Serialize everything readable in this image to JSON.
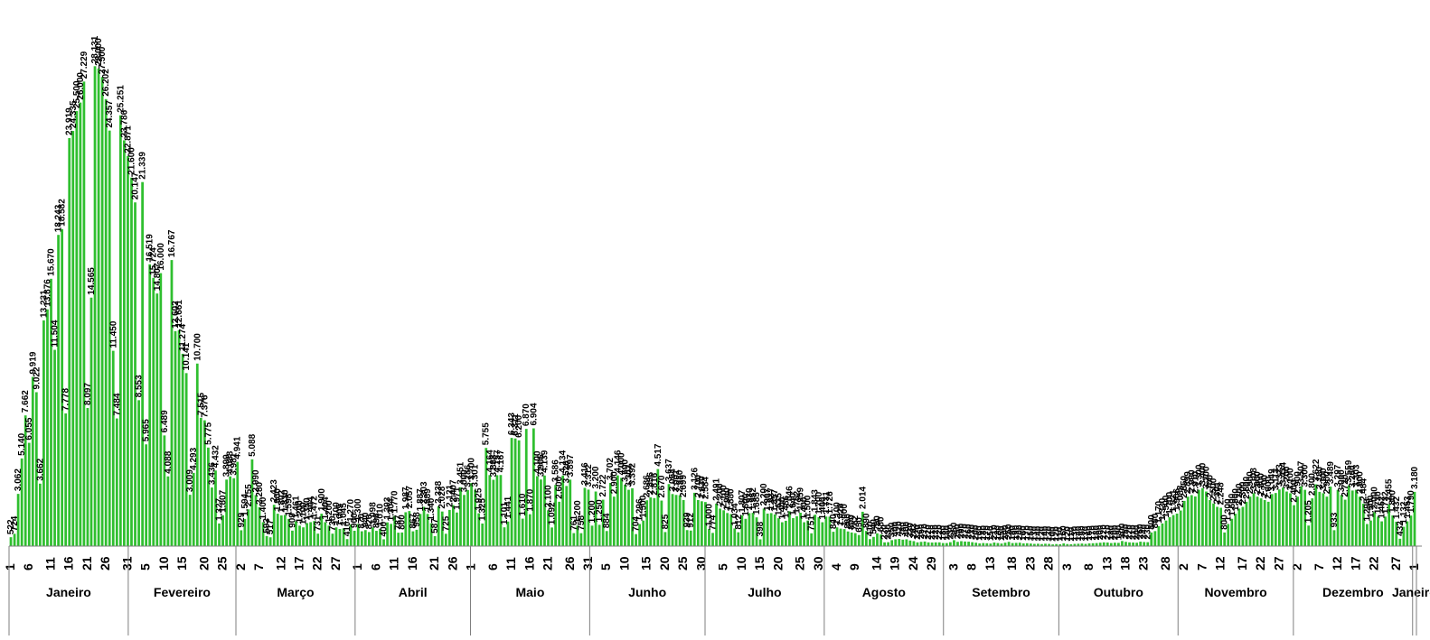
{
  "chart_data": {
    "type": "bar",
    "title": "",
    "xlabel": "",
    "ylabel": "",
    "ylim": [
      0,
      30000
    ],
    "grid": false,
    "legend": "none",
    "colors": {
      "bar": "#2fbf2f",
      "bar_edge": "#1a8f1a",
      "axis": "#7f7f7f",
      "text": "#000000"
    },
    "months": [
      {
        "label": "Janeiro",
        "days": 31
      },
      {
        "label": "Fevereiro",
        "days": 28
      },
      {
        "label": "Março",
        "days": 31
      },
      {
        "label": "Abril",
        "days": 30
      },
      {
        "label": "Maio",
        "days": 31
      },
      {
        "label": "Junho",
        "days": 30
      },
      {
        "label": "Julho",
        "days": 31
      },
      {
        "label": "Agosto",
        "days": 31
      },
      {
        "label": "Setembro",
        "days": 30
      },
      {
        "label": "Outubro",
        "days": 31
      },
      {
        "label": "Novembro",
        "days": 30
      },
      {
        "label": "Dezembro",
        "days": 31
      },
      {
        "label": "Janeiro",
        "days": 1
      }
    ],
    "tick_labels": [
      "1",
      "6",
      "11",
      "16",
      "21",
      "26",
      "31",
      "5",
      "10",
      "15",
      "20",
      "25",
      "2",
      "7",
      "12",
      "17",
      "22",
      "27",
      "1",
      "6",
      "11",
      "16",
      "21",
      "26",
      "1",
      "6",
      "11",
      "16",
      "21",
      "26",
      "31",
      "5",
      "10",
      "15",
      "20",
      "25",
      "30",
      "5",
      "10",
      "15",
      "20",
      "25",
      "30",
      "4",
      "9",
      "14",
      "19",
      "24",
      "29",
      "3",
      "8",
      "13",
      "18",
      "23",
      "28",
      "3",
      "8",
      "13",
      "18",
      "23",
      "28",
      "2",
      "7",
      "12",
      "17",
      "22",
      "27",
      "2",
      "7",
      "12",
      "17",
      "22",
      "27",
      "1"
    ],
    "values": [
      522,
      724,
      3062,
      5140,
      7662,
      6055,
      9919,
      9022,
      3662,
      13231,
      13876,
      15670,
      11504,
      18243,
      18582,
      7778,
      23919,
      24335,
      25500,
      26000,
      27229,
      8097,
      14565,
      28131,
      28000,
      27500,
      26202,
      24357,
      11450,
      7484,
      25251,
      23786,
      22871,
      21600,
      20147,
      8553,
      21339,
      5965,
      16519,
      15724,
      14807,
      16000,
      6489,
      4088,
      16767,
      12602,
      12661,
      11274,
      10141,
      3009,
      4293,
      10700,
      7515,
      7376,
      5775,
      3436,
      4432,
      1327,
      1807,
      3899,
      4088,
      3981,
      4941,
      929,
      1594,
      2155,
      5088,
      2990,
      2280,
      1400,
      593,
      517,
      2423,
      1900,
      1802,
      1830,
      1598,
      909,
      1461,
      1200,
      1100,
      1350,
      1404,
      1472,
      731,
      1900,
      1404,
      1200,
      730,
      1100,
      1005,
      1045,
      410,
      1270,
      900,
      1300,
      870,
      940,
      826,
      1098,
      896,
      1010,
      400,
      1393,
      1304,
      1770,
      787,
      800,
      1987,
      2057,
      867,
      958,
      1887,
      2303,
      1889,
      1340,
      587,
      2338,
      2028,
      725,
      2121,
      2407,
      1971,
      3451,
      3000,
      3286,
      3700,
      3301,
      1925,
      1325,
      5755,
      4164,
      3888,
      4157,
      4167,
      1101,
      1441,
      6343,
      6311,
      6200,
      1610,
      6870,
      1870,
      6904,
      4100,
      3905,
      4139,
      2100,
      1092,
      3586,
      2600,
      4134,
      3526,
      3897,
      761,
      1200,
      758,
      3416,
      3312,
      1200,
      3200,
      1250,
      2722,
      884,
      3702,
      2900,
      4146,
      4000,
      3600,
      3302,
      3392,
      704,
      1296,
      1500,
      2686,
      2856,
      2816,
      4517,
      2670,
      825,
      3637,
      3054,
      3001,
      2980,
      2699,
      939,
      912,
      3126,
      2700,
      2630,
      2584,
      1000,
      774,
      2491,
      2200,
      2100,
      1940,
      1880,
      1034,
      812,
      1807,
      1600,
      1930,
      1952,
      1685,
      398,
      2200,
      1907,
      1937,
      1857,
      1635,
      1400,
      1486,
      2046,
      1640,
      1752,
      1959,
      1400,
      1500,
      751,
      1843,
      1700,
      1400,
      1731,
      1726,
      840,
      1100,
      1026,
      1000,
      860,
      800,
      762,
      650,
      2014,
      890,
      410,
      540,
      750,
      680,
      220,
      230,
      350,
      400,
      420,
      380,
      400,
      330,
      293,
      220,
      250,
      270,
      220,
      210,
      220,
      220,
      180,
      180,
      230,
      350,
      250,
      290,
      270,
      260,
      230,
      200,
      160,
      180,
      170,
      150,
      210,
      180,
      150,
      200,
      250,
      180,
      190,
      200,
      160,
      170,
      150,
      130,
      140,
      120,
      140,
      130,
      100,
      120,
      110,
      160,
      120,
      110,
      130,
      140,
      150,
      130,
      160,
      170,
      180,
      200,
      220,
      210,
      180,
      200,
      190,
      300,
      250,
      220,
      210,
      200,
      260,
      240,
      230,
      800,
      880,
      1170,
      1330,
      1500,
      1700,
      1821,
      1906,
      2088,
      2650,
      2899,
      2990,
      2910,
      3300,
      3400,
      3200,
      2700,
      2500,
      2301,
      2248,
      800,
      1300,
      1600,
      1900,
      2200,
      2300,
      2600,
      2900,
      3108,
      2900,
      2800,
      2700,
      2600,
      3049,
      3113,
      3323,
      3434,
      3200,
      3100,
      2400,
      2900,
      3507,
      3300,
      1205,
      2800,
      3622,
      3180,
      3100,
      2900,
      3489,
      933,
      3297,
      3000,
      2720,
      3559,
      3260,
      3303,
      2900,
      2484,
      1295,
      1500,
      2000,
      1730,
      1452,
      1732,
      2455,
      1800,
      1432,
      432,
      1132,
      1453,
      1790,
      3180
    ]
  }
}
